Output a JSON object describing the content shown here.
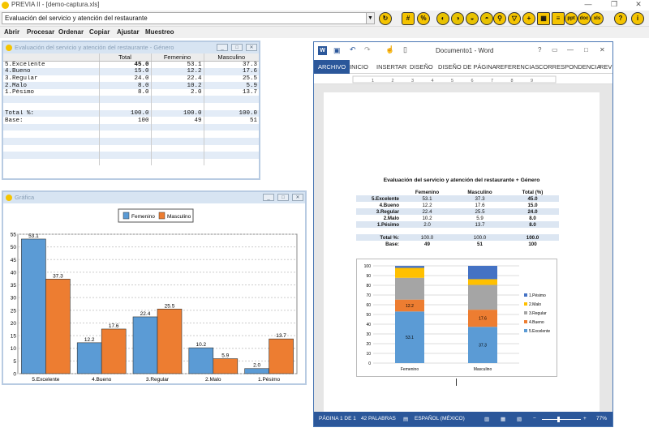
{
  "app": {
    "title": "PREVIA II - [demo-captura.xls]",
    "combo_value": "Evaluación del servicio y atención del restaurante",
    "menu": [
      "Abrir",
      "Procesar",
      "Ordenar",
      "Copiar",
      "Ajustar",
      "Muestreo"
    ],
    "toolbar_icons": [
      "refresh-icon",
      "number-icon",
      "percent-icon",
      "tool-a-icon",
      "tool-b-icon",
      "tool-c-icon",
      "tool-d-icon",
      "tool-e-icon",
      "search-icon",
      "filter-icon",
      "add-icon",
      "grid-icon",
      "list-icon",
      "ppt-icon",
      "doc-icon",
      "xls-icon",
      "help-icon",
      "info-icon"
    ]
  },
  "table_window": {
    "title": "Evaluación del servicio y atención del restaurante - Género",
    "headers": [
      "",
      "Total",
      "Femenino",
      "Masculino"
    ],
    "rows": [
      {
        "label": "5.Excelente",
        "total": "45.0",
        "fem": "53.1",
        "masc": "37.3"
      },
      {
        "label": "4.Bueno",
        "total": "15.0",
        "fem": "12.2",
        "masc": "17.6"
      },
      {
        "label": "3.Regular",
        "total": "24.0",
        "fem": "22.4",
        "masc": "25.5"
      },
      {
        "label": "2.Malo",
        "total": "8.0",
        "fem": "10.2",
        "masc": "5.9"
      },
      {
        "label": "1.Pésimo",
        "total": "8.0",
        "fem": "2.0",
        "masc": "13.7"
      }
    ],
    "total_row": {
      "label": "Total %:",
      "total": "100.0",
      "fem": "100.0",
      "masc": "100.0"
    },
    "base_row": {
      "label": "Base:",
      "total": "100",
      "fem": "49",
      "masc": "51"
    }
  },
  "chart_window": {
    "title": "Gráfica"
  },
  "chart_data": [
    {
      "type": "bar",
      "categories": [
        "5.Excelente",
        "4.Bueno",
        "3.Regular",
        "2.Malo",
        "1.Pésimo"
      ],
      "series": [
        {
          "name": "Femenino",
          "values": [
            53.1,
            12.2,
            22.4,
            10.2,
            2.0
          ],
          "color": "#5b9bd5"
        },
        {
          "name": "Masculino",
          "values": [
            37.3,
            17.6,
            25.5,
            5.9,
            13.7
          ],
          "color": "#ed7d31"
        }
      ],
      "ylim": [
        0,
        55
      ],
      "yticks": [
        0,
        5,
        10,
        15,
        20,
        25,
        30,
        35,
        40,
        45,
        50,
        55
      ],
      "grid": true,
      "legend": "top-center"
    },
    {
      "type": "bar",
      "stacked": true,
      "categories": [
        "Femenino",
        "Masculino"
      ],
      "series": [
        {
          "name": "5.Excelente",
          "values": [
            53.1,
            37.3
          ],
          "color": "#5b9bd5"
        },
        {
          "name": "4.Bueno",
          "values": [
            12.2,
            17.6
          ],
          "color": "#ed7d31"
        },
        {
          "name": "3.Regular",
          "values": [
            22.4,
            25.5
          ],
          "color": "#a5a5a5"
        },
        {
          "name": "2.Malo",
          "values": [
            10.2,
            5.9
          ],
          "color": "#ffc000"
        },
        {
          "name": "1.Pésimo",
          "values": [
            2.0,
            13.7
          ],
          "color": "#4472c4"
        }
      ],
      "ylim": [
        0,
        100
      ],
      "yticks": [
        0,
        10,
        20,
        30,
        40,
        50,
        60,
        70,
        80,
        90,
        100
      ],
      "grid": true,
      "legend": "right"
    }
  ],
  "word": {
    "title": "Documento1 - Word",
    "tabs": [
      "ARCHIVO",
      "INICIO",
      "INSERTAR",
      "DISEÑO",
      "DISEÑO DE PÁGINA",
      "REFERENCIAS",
      "CORRESPONDENCIA",
      "REV"
    ],
    "doc_title": "Evaluación del servicio y atención del restaurante + Género",
    "table_headers": [
      "",
      "Femenino",
      "Masculino",
      "Total (%)"
    ],
    "table_rows": [
      {
        "label": "5.Excelente",
        "fem": "53.1",
        "masc": "37.3",
        "total": "45.0"
      },
      {
        "label": "4.Bueno",
        "fem": "12.2",
        "masc": "17.6",
        "total": "15.0"
      },
      {
        "label": "3.Regular",
        "fem": "22.4",
        "masc": "25.5",
        "total": "24.0"
      },
      {
        "label": "2.Malo",
        "fem": "10.2",
        "masc": "5.9",
        "total": "8.0"
      },
      {
        "label": "1.Pésimo",
        "fem": "2.0",
        "masc": "13.7",
        "total": "8.0"
      }
    ],
    "total_row": {
      "label": "Total %:",
      "fem": "100.0",
      "masc": "100.0",
      "total": "100.0"
    },
    "base_row": {
      "label": "Base:",
      "fem": "49",
      "masc": "51",
      "total": "100"
    },
    "status": {
      "page": "PÁGINA 1 DE 1",
      "words": "42 PALABRAS",
      "lang": "ESPAÑOL (MÉXICO)",
      "zoom": "77%"
    }
  }
}
